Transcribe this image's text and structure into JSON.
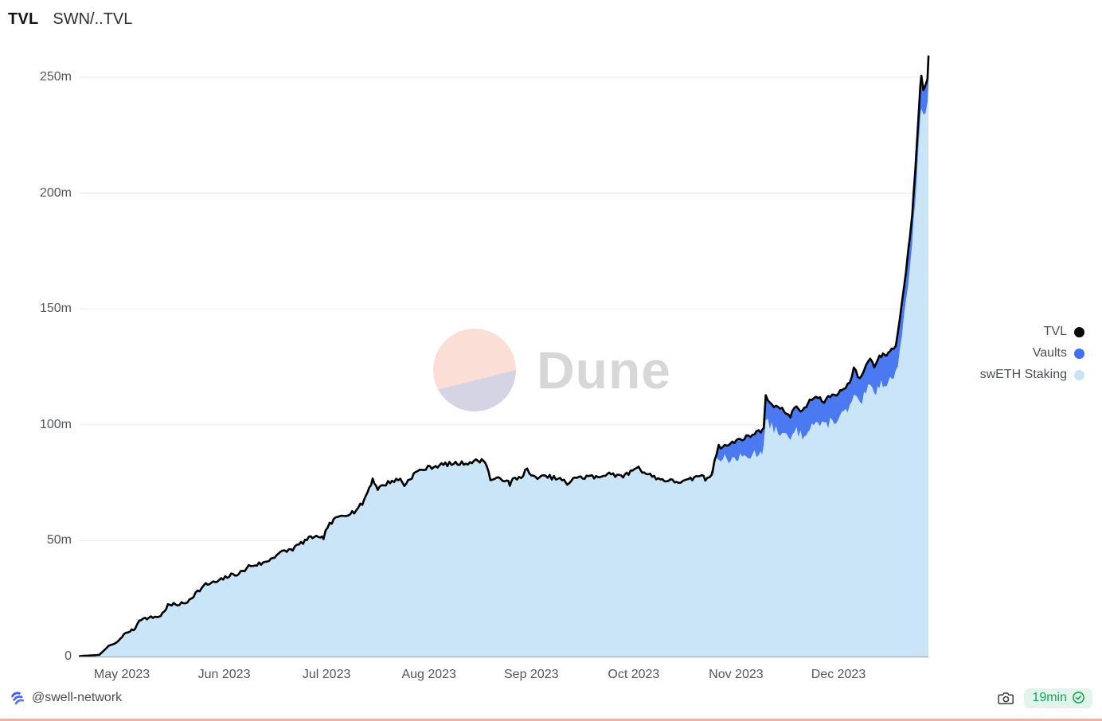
{
  "header": {
    "title": "TVL",
    "subtitle": "SWN/..TVL"
  },
  "watermark": {
    "text": "Dune",
    "circle_top_color": "#fbded6",
    "circle_bottom_color": "#d5d4e4"
  },
  "legend": {
    "items": [
      {
        "label": "TVL",
        "color": "#0a0a0a"
      },
      {
        "label": "Vaults",
        "color": "#3e6ff4"
      },
      {
        "label": "swETH Staking",
        "color": "#c7e3f8"
      }
    ]
  },
  "footer": {
    "author": "@swell-network",
    "badge_text": "19min",
    "badge_bg": "#e2f5ea",
    "badge_color": "#17a35b",
    "logo_color": "#3d59f2"
  },
  "chart_data": {
    "type": "area",
    "stacked": true,
    "title": "TVL",
    "x_unit": "months since 2023-05-01",
    "x_axis": {
      "labels": [
        "May 2023",
        "Jun 2023",
        "Jul 2023",
        "Aug 2023",
        "Sep 2023",
        "Oct 2023",
        "Nov 2023",
        "Dec 2023"
      ],
      "label_month_offsets": [
        0,
        1,
        2,
        3,
        4,
        5,
        6,
        7
      ]
    },
    "y_axis": {
      "unit": "millions USD",
      "range": [
        0,
        260
      ],
      "ticks": [
        {
          "v": 0,
          "label": "0"
        },
        {
          "v": 50,
          "label": "50m"
        },
        {
          "v": 100,
          "label": "100m"
        },
        {
          "v": 150,
          "label": "150m"
        },
        {
          "v": 200,
          "label": "200m"
        },
        {
          "v": 250,
          "label": "250m"
        }
      ]
    },
    "grid": "horizontal",
    "legend_position": "right",
    "series": [
      {
        "name": "TVL",
        "kind": "line",
        "color": "#000000"
      },
      {
        "name": "Vaults",
        "kind": "area-band",
        "color": "#4b79f2",
        "note": "stacked on swETH Staking, equals total minus swETH"
      },
      {
        "name": "swETH Staking",
        "kind": "area",
        "color": "#cbe5f8"
      }
    ],
    "vaults_start_month_offset": 5.78,
    "series_points": {
      "total": [
        [
          -0.41,
          0.2
        ],
        [
          -0.22,
          0.7
        ],
        [
          -0.13,
          4.5
        ],
        [
          -0.05,
          6
        ],
        [
          0.02,
          9.5
        ],
        [
          0.08,
          11
        ],
        [
          0.13,
          12
        ],
        [
          0.17,
          16
        ],
        [
          0.38,
          17.5
        ],
        [
          0.45,
          22
        ],
        [
          0.62,
          23
        ],
        [
          0.7,
          26.5
        ],
        [
          0.82,
          31
        ],
        [
          0.95,
          32.5
        ],
        [
          1.03,
          34.5
        ],
        [
          1.18,
          36.5
        ],
        [
          1.24,
          39
        ],
        [
          1.4,
          40.5
        ],
        [
          1.53,
          44.5
        ],
        [
          1.67,
          46.5
        ],
        [
          1.79,
          50
        ],
        [
          1.88,
          52
        ],
        [
          1.94,
          50.5
        ],
        [
          1.97,
          51.5
        ],
        [
          2.01,
          56
        ],
        [
          2.09,
          59.5
        ],
        [
          2.15,
          61
        ],
        [
          2.27,
          62.5
        ],
        [
          2.35,
          66
        ],
        [
          2.4,
          71
        ],
        [
          2.45,
          76.5
        ],
        [
          2.5,
          72.5
        ],
        [
          2.62,
          75.5
        ],
        [
          2.72,
          76.5
        ],
        [
          2.76,
          74
        ],
        [
          2.87,
          79.5
        ],
        [
          2.99,
          81.5
        ],
        [
          3.16,
          83
        ],
        [
          3.36,
          83.5
        ],
        [
          3.48,
          84.5
        ],
        [
          3.55,
          84.5
        ],
        [
          3.6,
          76.5
        ],
        [
          3.76,
          76.5
        ],
        [
          3.79,
          73.5
        ],
        [
          3.82,
          76.5
        ],
        [
          3.9,
          77.5
        ],
        [
          3.96,
          81
        ],
        [
          4.0,
          77.5
        ],
        [
          4.18,
          77.5
        ],
        [
          4.32,
          76
        ],
        [
          4.35,
          73.5
        ],
        [
          4.41,
          77.5
        ],
        [
          4.5,
          77
        ],
        [
          4.56,
          78
        ],
        [
          4.65,
          77
        ],
        [
          4.76,
          79.5
        ],
        [
          4.86,
          77.5
        ],
        [
          4.95,
          79
        ],
        [
          5.03,
          82
        ],
        [
          5.12,
          79
        ],
        [
          5.26,
          76.5
        ],
        [
          5.4,
          75.5
        ],
        [
          5.5,
          75.5
        ],
        [
          5.59,
          77
        ],
        [
          5.65,
          78.5
        ],
        [
          5.7,
          76.5
        ],
        [
          5.76,
          78.5
        ],
        [
          5.79,
          85
        ],
        [
          5.83,
          90.5
        ],
        [
          5.91,
          91
        ],
        [
          6.02,
          93.5
        ],
        [
          6.12,
          95
        ],
        [
          6.24,
          97.5
        ],
        [
          6.27,
          99
        ],
        [
          6.29,
          112
        ],
        [
          6.35,
          109
        ],
        [
          6.45,
          106.5
        ],
        [
          6.53,
          104
        ],
        [
          6.59,
          108
        ],
        [
          6.65,
          105.5
        ],
        [
          6.72,
          110.5
        ],
        [
          6.78,
          112
        ],
        [
          6.86,
          110
        ],
        [
          6.92,
          112.5
        ],
        [
          7.0,
          113.5
        ],
        [
          7.05,
          116
        ],
        [
          7.11,
          118
        ],
        [
          7.15,
          124.5
        ],
        [
          7.21,
          119.5
        ],
        [
          7.27,
          126
        ],
        [
          7.31,
          128.5
        ],
        [
          7.35,
          125.5
        ],
        [
          7.4,
          129.5
        ],
        [
          7.47,
          130.5
        ],
        [
          7.52,
          132.5
        ],
        [
          7.56,
          134
        ],
        [
          7.6,
          146
        ],
        [
          7.64,
          159
        ],
        [
          7.68,
          174
        ],
        [
          7.72,
          191
        ],
        [
          7.75,
          210
        ],
        [
          7.78,
          232
        ],
        [
          7.8,
          247
        ],
        [
          7.81,
          250
        ],
        [
          7.83,
          244
        ],
        [
          7.85,
          247
        ],
        [
          7.87,
          249
        ],
        [
          7.88,
          259
        ]
      ],
      "sweth": [
        [
          5.78,
          78.5
        ],
        [
          5.79,
          83
        ],
        [
          5.83,
          86.5
        ],
        [
          5.91,
          85
        ],
        [
          6.02,
          85.5
        ],
        [
          6.12,
          86.5
        ],
        [
          6.24,
          88.5
        ],
        [
          6.27,
          90
        ],
        [
          6.29,
          101.5
        ],
        [
          6.35,
          99
        ],
        [
          6.45,
          96
        ],
        [
          6.53,
          93.5
        ],
        [
          6.59,
          97.5
        ],
        [
          6.65,
          95
        ],
        [
          6.72,
          99.5
        ],
        [
          6.78,
          101
        ],
        [
          6.86,
          99
        ],
        [
          6.92,
          101.5
        ],
        [
          7.0,
          102.5
        ],
        [
          7.05,
          105
        ],
        [
          7.11,
          107
        ],
        [
          7.15,
          112.5
        ],
        [
          7.21,
          108
        ],
        [
          7.27,
          114
        ],
        [
          7.31,
          116.5
        ],
        [
          7.35,
          113.5
        ],
        [
          7.4,
          117.5
        ],
        [
          7.47,
          118.5
        ],
        [
          7.52,
          120
        ],
        [
          7.56,
          121.5
        ],
        [
          7.6,
          133
        ],
        [
          7.64,
          146
        ],
        [
          7.68,
          161
        ],
        [
          7.72,
          178
        ],
        [
          7.75,
          197
        ],
        [
          7.78,
          219
        ],
        [
          7.8,
          234
        ],
        [
          7.81,
          238
        ],
        [
          7.83,
          232
        ],
        [
          7.85,
          235
        ],
        [
          7.87,
          237
        ],
        [
          7.88,
          247
        ]
      ]
    }
  }
}
